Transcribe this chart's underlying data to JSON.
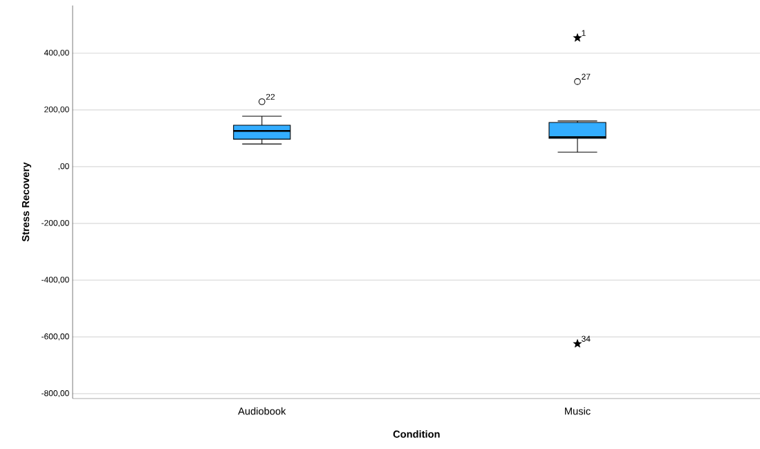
{
  "chart_data": {
    "type": "box",
    "xlabel": "Condition",
    "ylabel": "Stress Recovery",
    "categories": [
      "Audiobook",
      "Music"
    ],
    "boxes": [
      {
        "low": 80,
        "q1": 97,
        "median": 126,
        "q3": 146,
        "high": 178
      },
      {
        "low": 51,
        "q1": 100,
        "median": 104,
        "q3": 156,
        "high": 161
      }
    ],
    "color": "#33adff",
    "series": [
      {
        "type": "scatter",
        "x": [
          "Audiobook",
          "Music"
        ],
        "values": [
          229,
          300
        ],
        "color": "#000000",
        "marker": "circle"
      },
      {
        "type": "scatter",
        "x": [
          "Music",
          "Music"
        ],
        "values": [
          454,
          -624
        ],
        "color": "#000000",
        "marker": "star"
      }
    ],
    "annotations": [
      {
        "text": "22",
        "x": "Audiobook",
        "y": 229
      },
      {
        "text": "1",
        "x": "Music",
        "y": 454
      },
      {
        "text": "27",
        "x": "Music",
        "y": 300
      },
      {
        "text": "34",
        "x": "Music",
        "y": -624
      }
    ],
    "ylim": [
      -817,
      568
    ],
    "yticks": [
      {
        "value": -800,
        "label": "-800,00"
      },
      {
        "value": -600,
        "label": "-600,00"
      },
      {
        "value": -400,
        "label": "-400,00"
      },
      {
        "value": -200,
        "label": "-200,00"
      },
      {
        "value": 0,
        "label": ",00"
      },
      {
        "value": 200,
        "label": "200,00"
      },
      {
        "value": 400,
        "label": "400,00"
      }
    ],
    "grid": "y"
  }
}
